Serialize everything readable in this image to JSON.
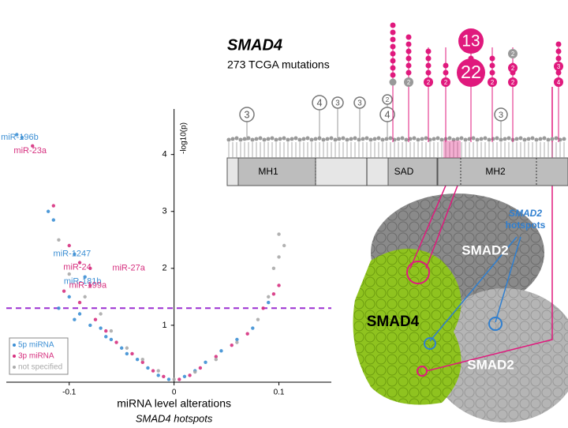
{
  "chart_data": {
    "type": "scatter",
    "xlabel": "miRNA level alterations",
    "xlabel2": "SMAD4 hotspots",
    "ylabel": "-log10(p)",
    "xlim": [
      -0.16,
      0.15
    ],
    "ylim": [
      0,
      4.8
    ],
    "xticks": [
      -0.1,
      0,
      0.1
    ],
    "yticks": [
      1,
      2,
      3,
      4
    ],
    "threshold": 1.3,
    "threshold_color": "#9b2fd1",
    "legend": "lower left",
    "series": [
      {
        "name": "5p miRNA",
        "color": "#3c8fd4",
        "x": [
          -0.145,
          -0.15,
          -0.095,
          -0.085,
          -0.12,
          -0.115,
          -0.1,
          -0.09,
          -0.08,
          -0.07,
          -0.06,
          -0.05,
          -0.045,
          -0.035,
          -0.025,
          -0.015,
          -0.005,
          0.01,
          0.02,
          0.03,
          0.045,
          0.06,
          0.075,
          0.09,
          -0.11,
          -0.095,
          -0.065
        ],
        "values": [
          4.3,
          4.35,
          2.25,
          1.85,
          3.0,
          2.85,
          1.5,
          1.2,
          1.0,
          0.95,
          0.75,
          0.6,
          0.5,
          0.4,
          0.25,
          0.12,
          0.05,
          0.1,
          0.2,
          0.35,
          0.55,
          0.75,
          0.95,
          1.4,
          1.3,
          1.1,
          0.8
        ]
      },
      {
        "name": "3p miRNA",
        "color": "#d6307f",
        "x": [
          -0.135,
          -0.09,
          -0.08,
          -0.08,
          -0.115,
          -0.1,
          -0.105,
          -0.09,
          -0.075,
          -0.065,
          -0.055,
          -0.04,
          -0.03,
          -0.02,
          -0.01,
          0.005,
          0.015,
          0.025,
          0.04,
          0.055,
          0.07,
          0.085,
          0.1,
          0.095
        ],
        "values": [
          4.15,
          2.1,
          2.0,
          1.7,
          3.1,
          2.4,
          1.6,
          1.4,
          1.1,
          0.9,
          0.7,
          0.5,
          0.35,
          0.2,
          0.1,
          0.05,
          0.12,
          0.25,
          0.45,
          0.65,
          0.85,
          1.3,
          1.7,
          1.55
        ]
      },
      {
        "name": "not specified",
        "color": "#aaaaaa",
        "x": [
          -0.11,
          -0.1,
          -0.085,
          -0.07,
          -0.06,
          -0.045,
          -0.03,
          -0.015,
          0.0,
          0.02,
          0.04,
          0.06,
          0.08,
          0.09,
          0.095,
          0.1,
          0.105,
          0.1
        ],
        "values": [
          2.5,
          1.9,
          1.5,
          1.2,
          0.9,
          0.6,
          0.4,
          0.2,
          0.05,
          0.18,
          0.4,
          0.7,
          1.1,
          1.5,
          2.0,
          2.2,
          2.4,
          2.6
        ]
      }
    ],
    "annotations": [
      {
        "text": "miR-196b",
        "x": -0.145,
        "y": 4.3,
        "color": "#3c8fd4"
      },
      {
        "text": "miR-23a",
        "x": -0.135,
        "y": 4.15,
        "color": "#d6307f"
      },
      {
        "text": "miR-1247",
        "x": -0.095,
        "y": 2.25,
        "color": "#3c8fd4"
      },
      {
        "text": "miR-24",
        "x": -0.09,
        "y": 2.1,
        "color": "#d6307f"
      },
      {
        "text": "miR-27a",
        "x": -0.08,
        "y": 2.0,
        "color": "#d6307f"
      },
      {
        "text": "miR-181b",
        "x": -0.085,
        "y": 1.85,
        "color": "#3c8fd4"
      },
      {
        "text": "miR-199a",
        "x": -0.08,
        "y": 1.7,
        "color": "#d6307f"
      }
    ]
  },
  "mutation_diagram": {
    "title": "SMAD4",
    "subtitle": "273 TCGA mutations",
    "domains": [
      "MH1",
      "SAD",
      "MH2"
    ],
    "gray_counts": [
      3,
      4,
      3,
      3,
      2,
      4,
      3
    ],
    "hotspot_counts": [
      2,
      2,
      2,
      13,
      22,
      2,
      2,
      2,
      2,
      3,
      4
    ]
  },
  "structure": {
    "labels": [
      "SMAD2",
      "SMAD4",
      "SMAD2"
    ],
    "hotspot_note": [
      "SMAD2",
      "hotspots"
    ]
  }
}
